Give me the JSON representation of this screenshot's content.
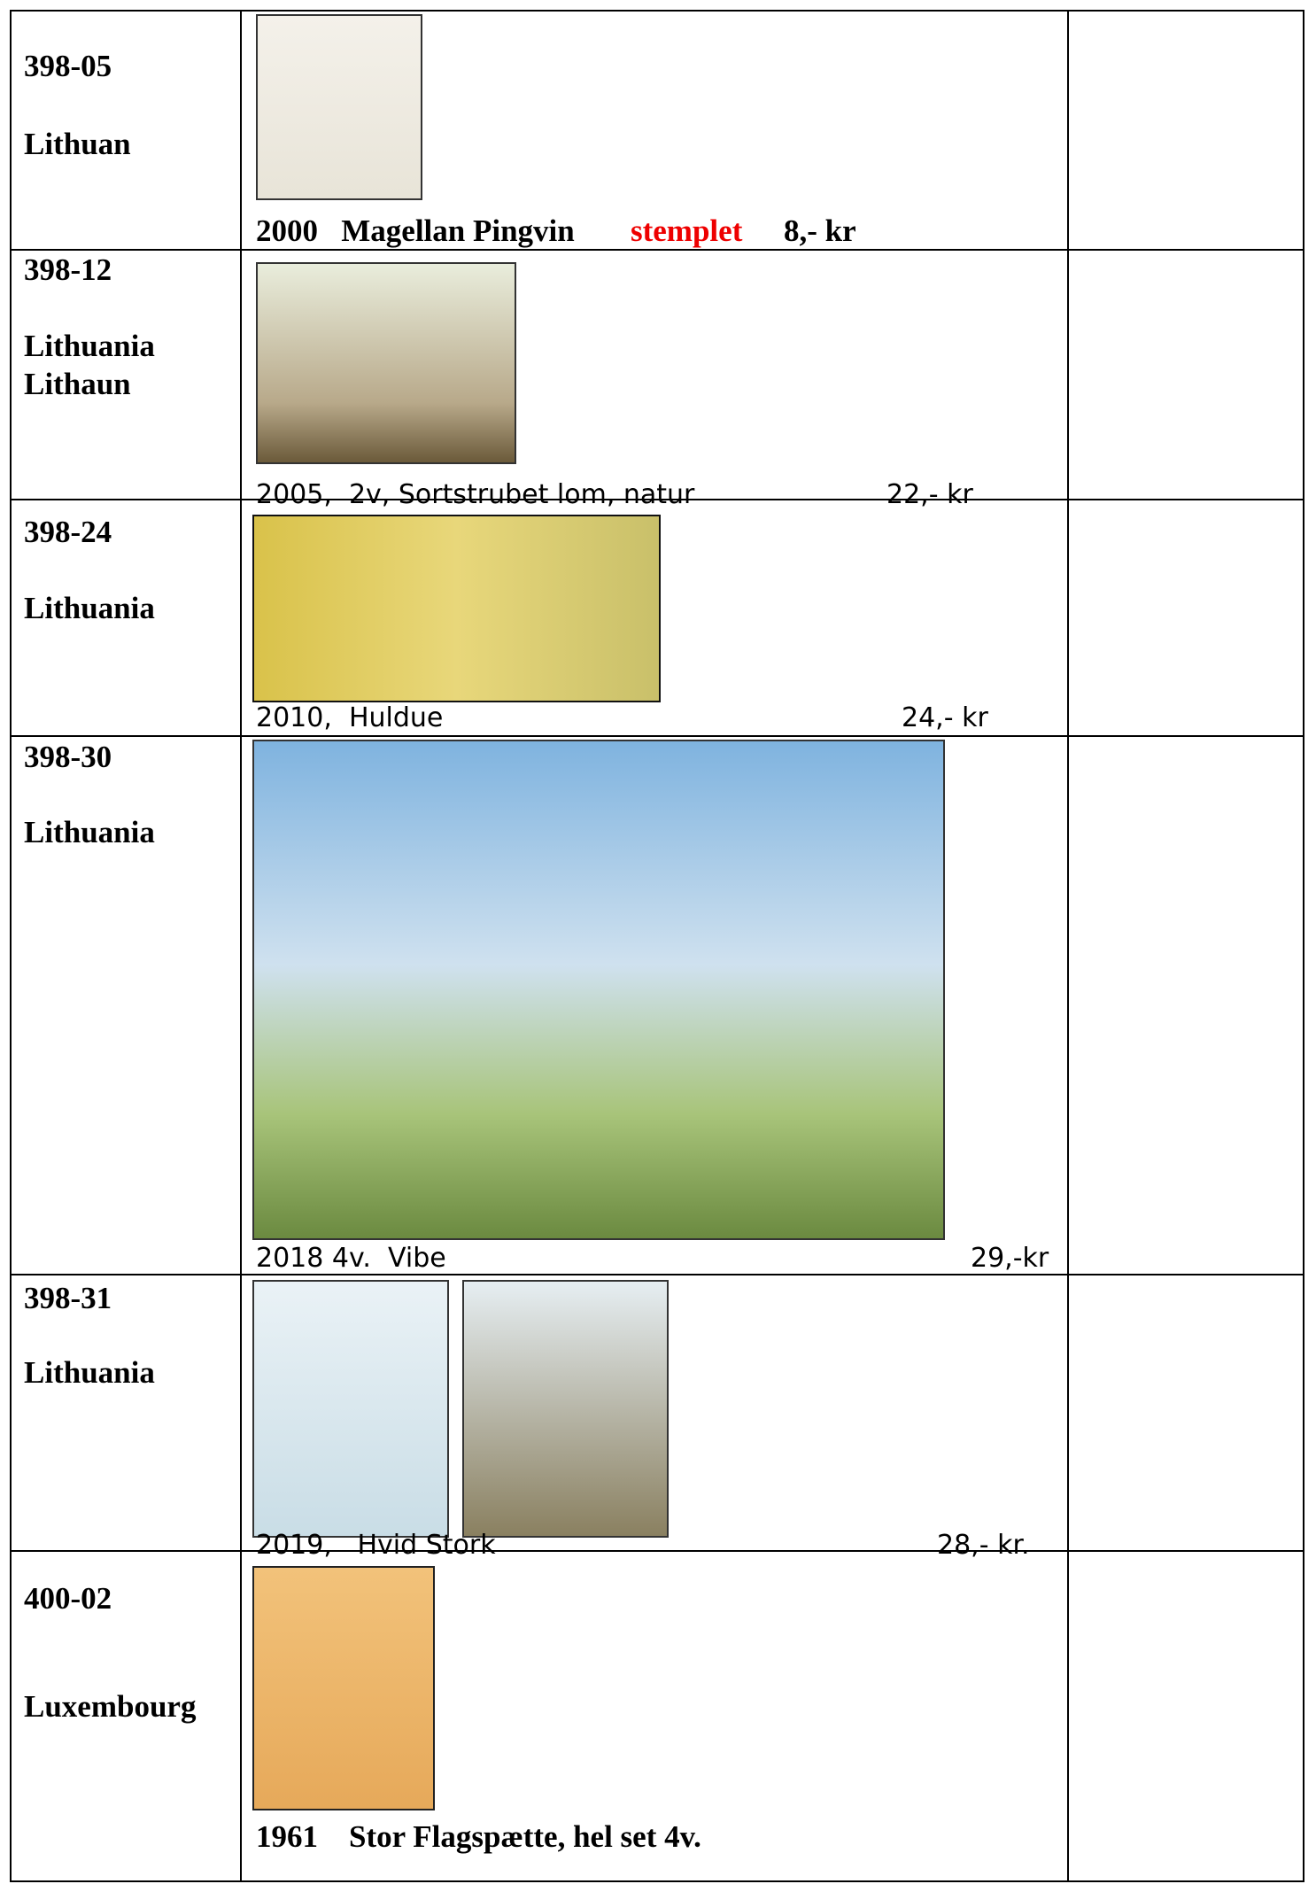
{
  "table": {
    "rows": [
      {
        "code": "398-05",
        "country": [
          "Lithuan"
        ],
        "caption": "2000   Magellan Pingvin",
        "status": "stemplet",
        "price": "8,- kr"
      },
      {
        "code": "398-12",
        "country": [
          "Lithuania",
          "Lithaun"
        ],
        "caption": "2005,  2v, Sortstrubet lom, natur",
        "price": "22,- kr"
      },
      {
        "code": "398-24",
        "country": [
          "Lithuania"
        ],
        "caption": "2010,  Huldue",
        "price": "24,- kr"
      },
      {
        "code": "398-30",
        "country": [
          "Lithuania"
        ],
        "caption": "2018 4v.  Vibe",
        "price": "29,-kr"
      },
      {
        "code": "398-31",
        "country": [
          "Lithuania"
        ],
        "caption": "2019,   Hvid Stork",
        "price": "28,- kr."
      },
      {
        "code": "400-02",
        "country": [
          "Luxembourg"
        ],
        "caption": "1961    Stor Flagspætte, hel set 4v."
      }
    ]
  }
}
